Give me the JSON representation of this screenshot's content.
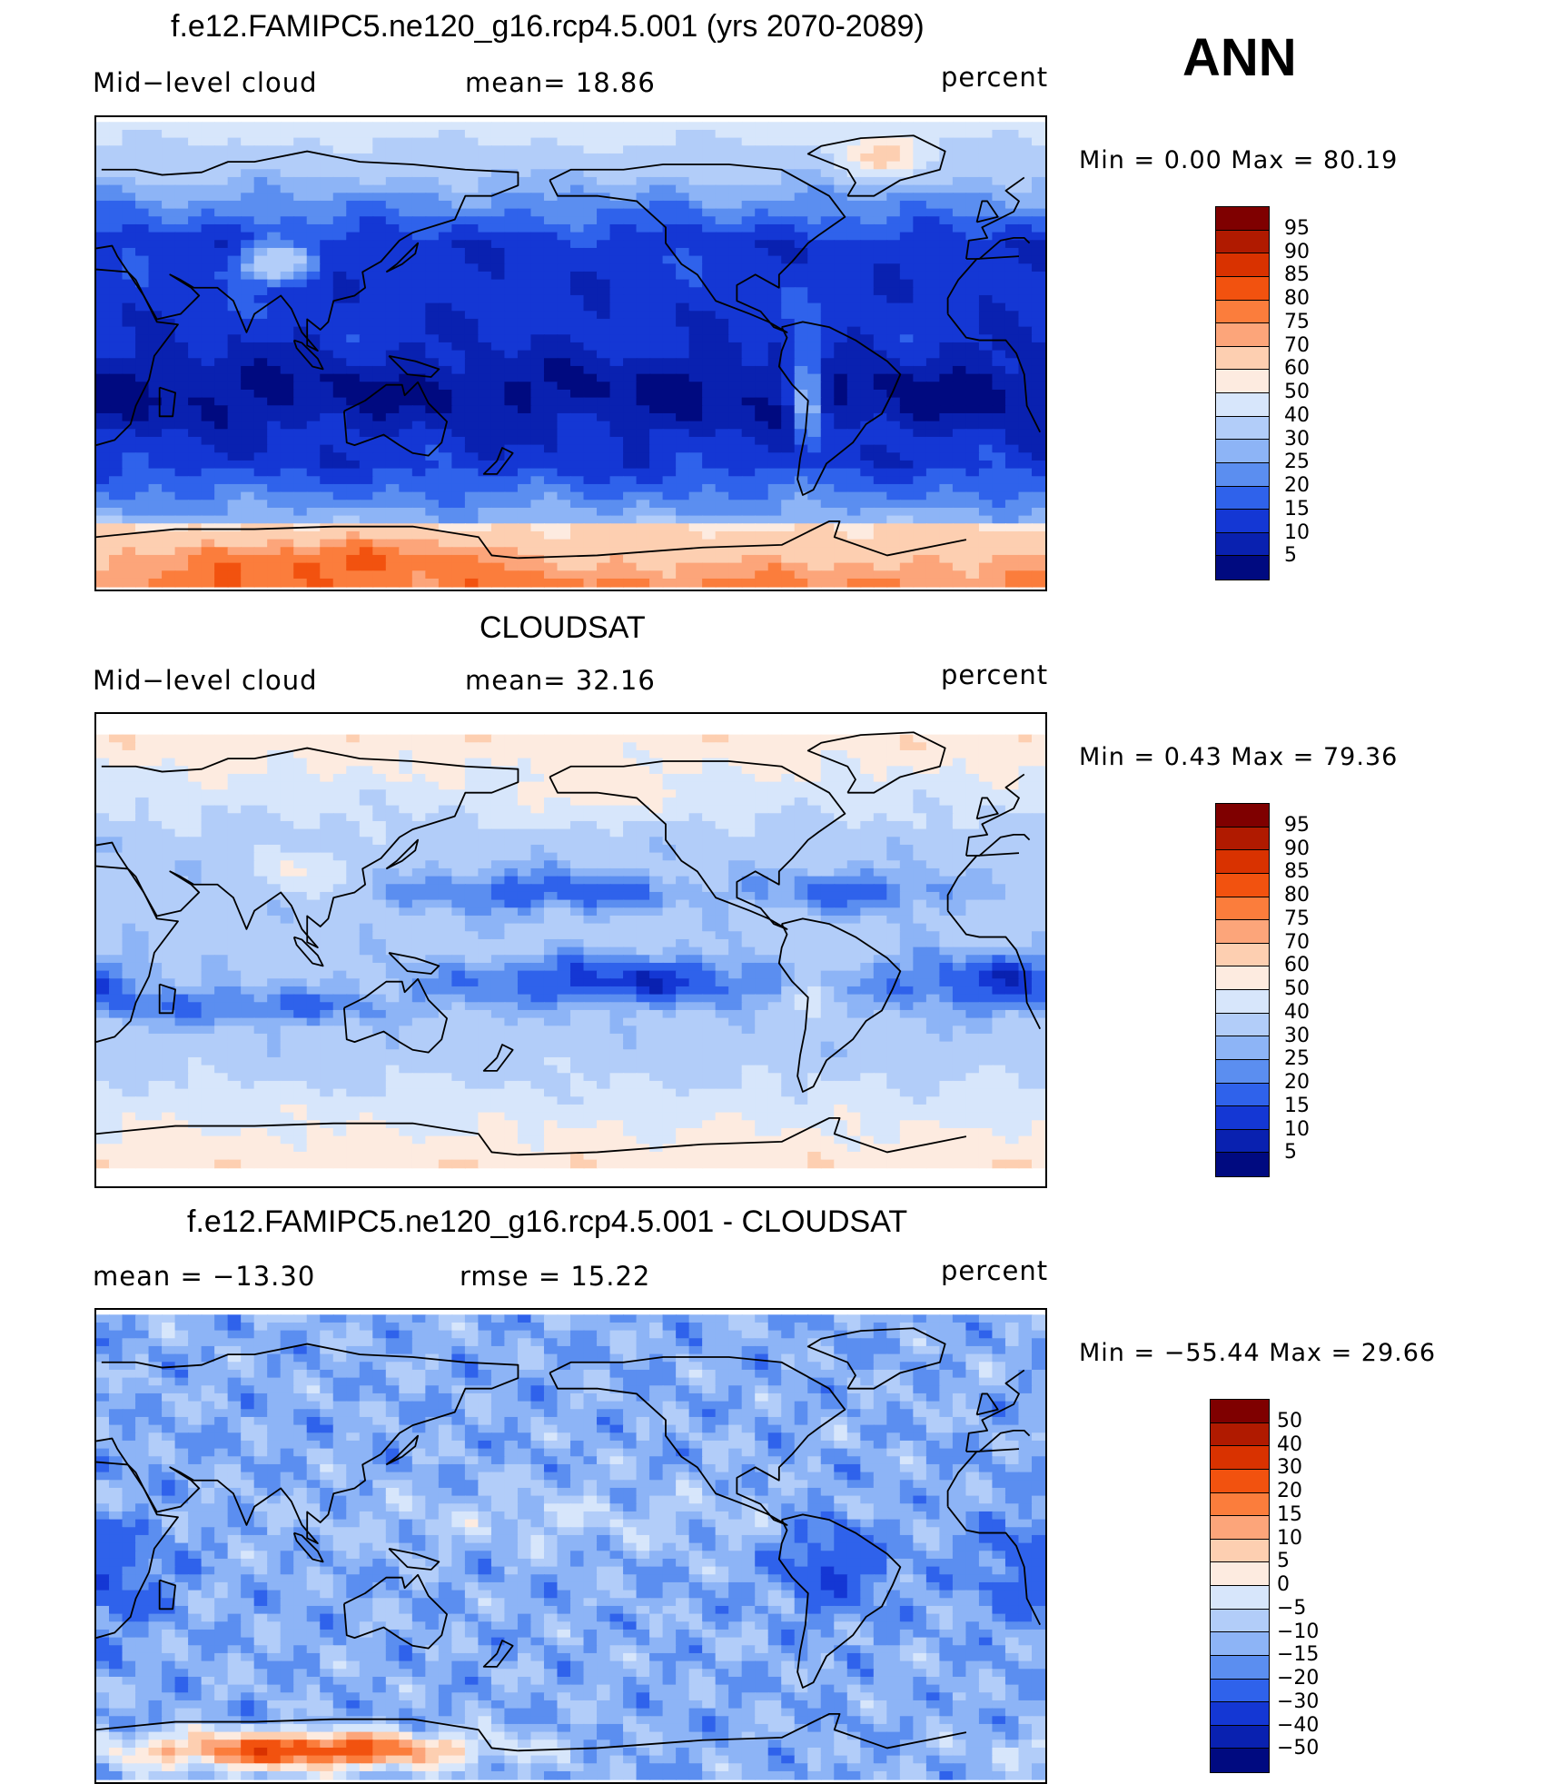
{
  "header": {
    "season": "ANN"
  },
  "panels": [
    {
      "id": "model",
      "title": "f.e12.FAMIPC5.ne120_g16.rcp4.5.001 (yrs 2070-2089)",
      "left_text": "Mid−level cloud",
      "center_text": "mean=   18.86",
      "units": "percent",
      "minmax": "Min  =     0.00  Max  =    80.19",
      "field": "model"
    },
    {
      "id": "obs",
      "title": "CLOUDSAT",
      "left_text": "Mid−level cloud",
      "center_text": "mean=   32.16",
      "units": "percent",
      "minmax": "Min  =     0.43  Max  =    79.36",
      "field": "obs"
    },
    {
      "id": "diff",
      "title": "f.e12.FAMIPC5.ne120_g16.rcp4.5.001 - CLOUDSAT",
      "left_text": "mean  =  −13.30",
      "center_text": "rmse  =    15.22",
      "units": "percent",
      "minmax": "Min  = −55.44  Max  =    29.66",
      "field": "diff"
    }
  ],
  "colorbars": {
    "abs": {
      "labels": [
        "95",
        "90",
        "85",
        "80",
        "75",
        "70",
        "60",
        "50",
        "40",
        "30",
        "25",
        "20",
        "15",
        "10",
        "5"
      ],
      "colors": [
        "#7f0000",
        "#b01a00",
        "#d93200",
        "#f2520f",
        "#fb7d3c",
        "#fca57a",
        "#fdcfb1",
        "#fdebe0",
        "#d7e6fb",
        "#b2cdf9",
        "#8db4f6",
        "#5b8ef0",
        "#2f62eb",
        "#1437d4",
        "#0921b0",
        "#000a80"
      ]
    },
    "diff": {
      "labels": [
        "50",
        "40",
        "30",
        "20",
        "15",
        "10",
        "5",
        "0",
        "−5",
        "−10",
        "−15",
        "−20",
        "−30",
        "−40",
        "−50"
      ],
      "colors": [
        "#7f0000",
        "#b01a00",
        "#d93200",
        "#f2520f",
        "#fb7d3c",
        "#fca57a",
        "#fdcfb1",
        "#fdebe0",
        "#d7e6fb",
        "#b2cdf9",
        "#8db4f6",
        "#5b8ef0",
        "#2f62eb",
        "#1437d4",
        "#0921b0",
        "#000a80"
      ]
    }
  }
}
